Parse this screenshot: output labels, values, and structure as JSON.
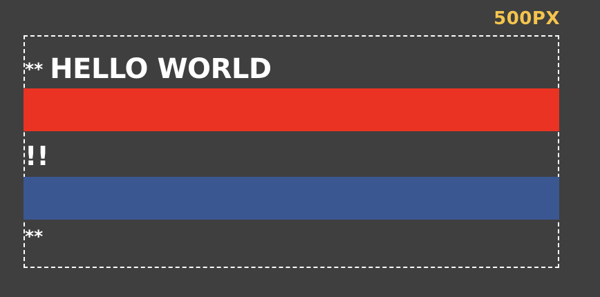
{
  "label": {
    "width": "500PX"
  },
  "lines": {
    "first_marker": "**",
    "hello": "HELLO WORLD",
    "middle": "!!",
    "last_marker": "**"
  },
  "colors": {
    "background": "#3f3f3f",
    "label": "#f4c44d",
    "red_bar": "#ea3323",
    "blue_bar": "#3a5791",
    "text": "#ffffff"
  }
}
